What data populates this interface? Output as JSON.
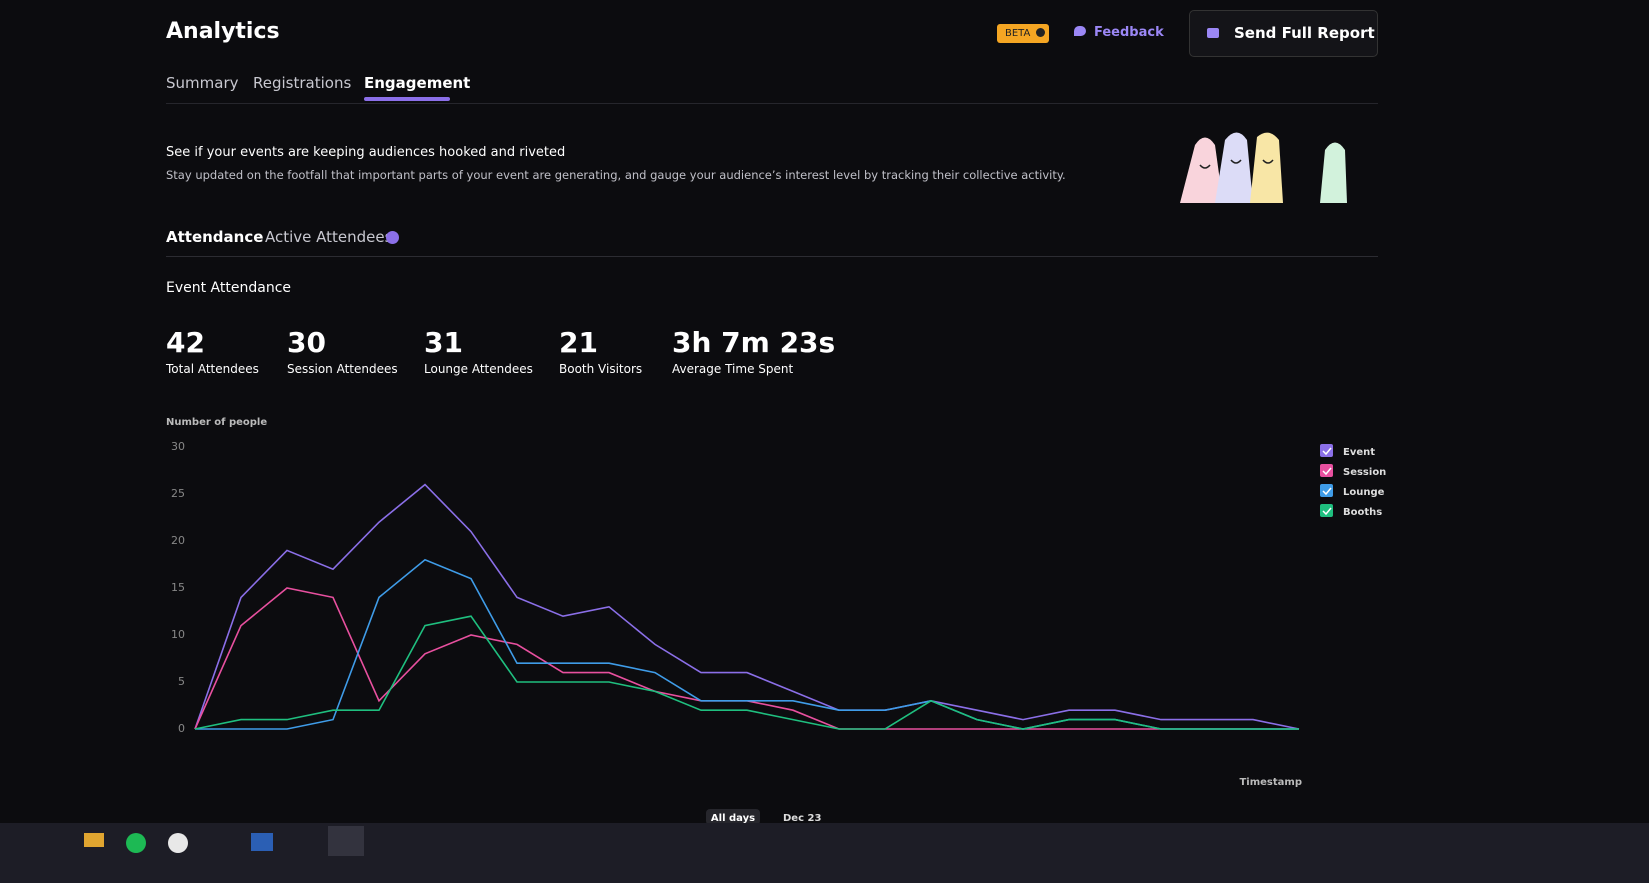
{
  "header": {
    "title": "Analytics",
    "badge": "BETA",
    "feedback": "Feedback",
    "report_button": "Send Full Report"
  },
  "tabs": [
    "Summary",
    "Registrations",
    "Engagement"
  ],
  "intro": {
    "heading": "See if your events are keeping audiences hooked and riveted",
    "description": "Stay updated on the footfall that important parts of your event are generating, and gauge your audience’s interest level by tracking their collective activity."
  },
  "subtabs": [
    "Attendance",
    "Active Attendees"
  ],
  "section_title": "Event Attendance",
  "stats": [
    {
      "value": 42,
      "label": "Total Attendees"
    },
    {
      "value": 30,
      "label": "Session Attendees"
    },
    {
      "value": 31,
      "label": "Lounge Attendees"
    },
    {
      "value": 21,
      "label": "Booth Visitors"
    },
    {
      "value": "3h 7m 23s",
      "label": "Average Time Spent"
    }
  ],
  "chart_data": {
    "type": "line",
    "ylabel": "Number of people",
    "xlabel": "Timestamp",
    "ylim": [
      0,
      30
    ],
    "yticks": [
      0,
      5,
      10,
      15,
      20,
      25,
      30
    ],
    "grid": false,
    "legend": "right",
    "series": [
      {
        "name": "Event",
        "color": "#8b6fe8",
        "values": [
          0,
          14,
          19,
          17,
          22,
          26,
          21,
          14,
          12,
          13,
          9,
          6,
          6,
          4,
          2,
          2,
          3,
          2,
          1,
          2,
          2,
          1,
          1,
          1,
          0
        ]
      },
      {
        "name": "Session",
        "color": "#e8509f",
        "values": [
          0,
          11,
          15,
          14,
          3,
          8,
          10,
          9,
          6,
          6,
          4,
          3,
          3,
          2,
          0,
          0,
          0,
          0,
          0,
          0,
          0,
          0,
          0,
          0,
          0
        ]
      },
      {
        "name": "Lounge",
        "color": "#3f9ce8",
        "values": [
          0,
          0,
          0,
          1,
          14,
          18,
          16,
          7,
          7,
          7,
          6,
          3,
          3,
          3,
          2,
          2,
          3,
          1,
          0,
          1,
          1,
          0,
          0,
          0,
          0
        ]
      },
      {
        "name": "Booths",
        "color": "#1fbf7f",
        "values": [
          0,
          1,
          1,
          2,
          2,
          11,
          12,
          5,
          5,
          5,
          4,
          2,
          2,
          1,
          0,
          0,
          3,
          1,
          0,
          1,
          1,
          0,
          0,
          0,
          0
        ]
      }
    ]
  },
  "day_filters": [
    "All days",
    "Dec 23"
  ]
}
